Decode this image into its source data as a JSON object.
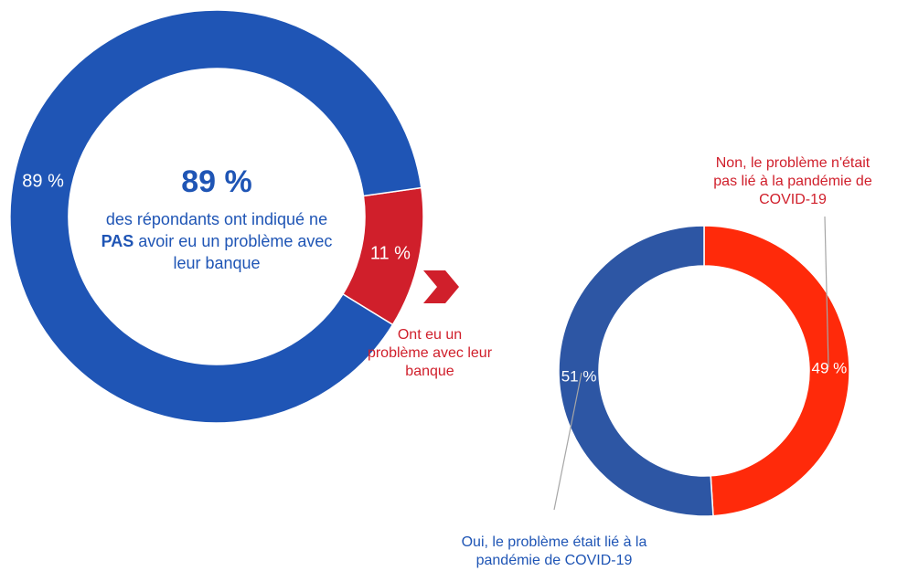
{
  "colors": {
    "blue_main": "#1F55B5",
    "red_main": "#D01F2B",
    "blue_sub": "#2D56A4",
    "red_sub": "#FF2A0A",
    "label_blue": "#1F55B5",
    "label_red": "#D01F2B",
    "leader": "#A6A6A6"
  },
  "center": {
    "percent": "89 %",
    "line1": "des répondants ont indiqué ne",
    "line2_bold": "PAS",
    "line2_rest": " avoir eu un problème avec",
    "line3": "leur banque"
  },
  "arrow": {
    "icon": "chevron-right-icon"
  },
  "chart_data": [
    {
      "type": "pie",
      "variant": "donut",
      "slices": [
        {
          "label": "des répondants ont indiqué ne PAS avoir eu un problème avec leur banque",
          "value": 89,
          "value_label": "89 %",
          "color": "#1F55B5"
        },
        {
          "label": "Ont eu un problème avec leur banque",
          "value": 11,
          "value_label": "11 %",
          "color": "#D01F2B"
        }
      ],
      "category_label_lines": [
        "Ont eu un",
        "problème avec leur",
        "banque"
      ]
    },
    {
      "type": "pie",
      "variant": "donut",
      "slices": [
        {
          "label": "Non, le problème n'était pas lié à la pandémie de COVID-19",
          "value": 49,
          "value_label": "49 %",
          "color": "#FF2A0A",
          "label_lines": [
            "Non, le problème n'était",
            "pas lié à la pandémie de",
            "COVID-19"
          ]
        },
        {
          "label": "Oui, le problème était lié à la pandémie de COVID-19",
          "value": 51,
          "value_label": "51 %",
          "color": "#2D56A4",
          "label_lines": [
            "Oui, le problème était lié à la",
            "pandémie de COVID-19"
          ]
        }
      ]
    }
  ]
}
